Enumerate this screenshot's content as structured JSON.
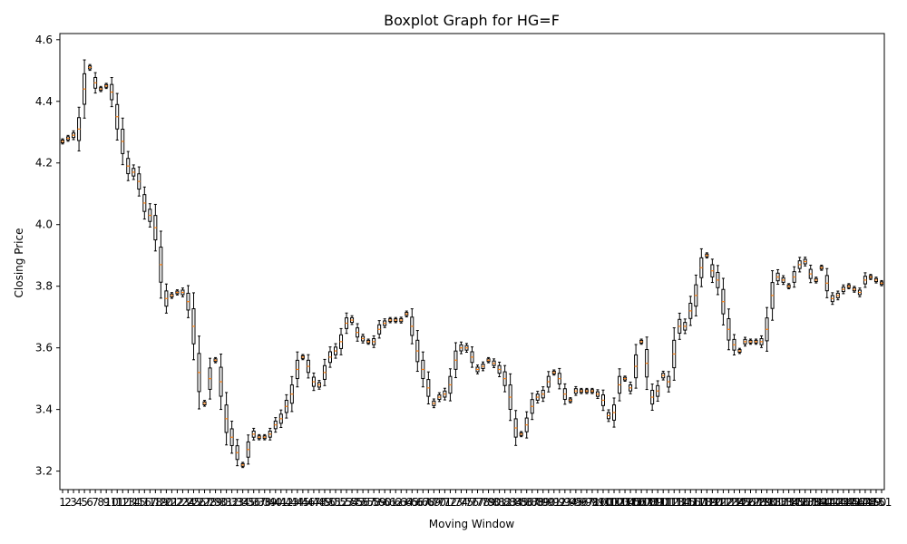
{
  "chart_data": {
    "type": "boxplot",
    "title": "Boxplot Graph for HG=F",
    "xlabel": "Moving Window",
    "ylabel": "Closing Price",
    "ylim": [
      3.14,
      4.62
    ],
    "yticks": [
      3.2,
      3.4,
      3.6,
      3.8,
      4.0,
      4.2,
      4.4,
      4.6
    ],
    "ytick_labels": [
      "3.2",
      "3.4",
      "3.6",
      "3.8",
      "4.0",
      "4.2",
      "4.4",
      "4.6"
    ],
    "x_count": 151,
    "colors": {
      "box": "#000000",
      "median": "#ff7f0e",
      "background": "#ffffff"
    },
    "anchors": [
      [
        1,
        4.27
      ],
      [
        2,
        4.28
      ],
      [
        3,
        4.29
      ],
      [
        4,
        4.31
      ],
      [
        5,
        4.44
      ],
      [
        6,
        4.51
      ],
      [
        7,
        4.46
      ],
      [
        8,
        4.44
      ],
      [
        9,
        4.45
      ],
      [
        10,
        4.43
      ],
      [
        11,
        4.35
      ],
      [
        12,
        4.27
      ],
      [
        13,
        4.19
      ],
      [
        14,
        4.17
      ],
      [
        15,
        4.14
      ],
      [
        16,
        4.07
      ],
      [
        17,
        4.03
      ],
      [
        18,
        3.99
      ],
      [
        19,
        3.87
      ],
      [
        20,
        3.76
      ],
      [
        21,
        3.77
      ],
      [
        22,
        3.78
      ],
      [
        23,
        3.78
      ],
      [
        24,
        3.75
      ],
      [
        25,
        3.67
      ],
      [
        26,
        3.52
      ],
      [
        27,
        3.42
      ],
      [
        28,
        3.5
      ],
      [
        29,
        3.56
      ],
      [
        30,
        3.49
      ],
      [
        31,
        3.37
      ],
      [
        32,
        3.31
      ],
      [
        33,
        3.26
      ],
      [
        34,
        3.22
      ],
      [
        35,
        3.27
      ],
      [
        36,
        3.32
      ],
      [
        37,
        3.31
      ],
      [
        38,
        3.31
      ],
      [
        39,
        3.32
      ],
      [
        40,
        3.35
      ],
      [
        41,
        3.37
      ],
      [
        42,
        3.41
      ],
      [
        43,
        3.45
      ],
      [
        44,
        3.53
      ],
      [
        45,
        3.57
      ],
      [
        46,
        3.54
      ],
      [
        47,
        3.49
      ],
      [
        48,
        3.48
      ],
      [
        49,
        3.52
      ],
      [
        50,
        3.57
      ],
      [
        51,
        3.59
      ],
      [
        52,
        3.62
      ],
      [
        53,
        3.68
      ],
      [
        54,
        3.69
      ],
      [
        55,
        3.65
      ],
      [
        56,
        3.63
      ],
      [
        57,
        3.62
      ],
      [
        58,
        3.62
      ],
      [
        59,
        3.66
      ],
      [
        60,
        3.68
      ],
      [
        61,
        3.69
      ],
      [
        62,
        3.69
      ],
      [
        63,
        3.69
      ],
      [
        64,
        3.71
      ],
      [
        65,
        3.67
      ],
      [
        66,
        3.59
      ],
      [
        67,
        3.53
      ],
      [
        68,
        3.47
      ],
      [
        69,
        3.42
      ],
      [
        70,
        3.44
      ],
      [
        71,
        3.45
      ],
      [
        72,
        3.48
      ],
      [
        73,
        3.56
      ],
      [
        74,
        3.6
      ],
      [
        75,
        3.6
      ],
      [
        76,
        3.57
      ],
      [
        77,
        3.53
      ],
      [
        78,
        3.54
      ],
      [
        79,
        3.56
      ],
      [
        80,
        3.55
      ],
      [
        81,
        3.53
      ],
      [
        82,
        3.5
      ],
      [
        83,
        3.44
      ],
      [
        84,
        3.34
      ],
      [
        85,
        3.32
      ],
      [
        86,
        3.35
      ],
      [
        87,
        3.41
      ],
      [
        88,
        3.44
      ],
      [
        89,
        3.45
      ],
      [
        90,
        3.49
      ],
      [
        91,
        3.52
      ],
      [
        92,
        3.5
      ],
      [
        93,
        3.45
      ],
      [
        94,
        3.43
      ],
      [
        95,
        3.46
      ],
      [
        96,
        3.46
      ],
      [
        97,
        3.46
      ],
      [
        98,
        3.46
      ],
      [
        99,
        3.45
      ],
      [
        100,
        3.43
      ],
      [
        101,
        3.38
      ],
      [
        102,
        3.39
      ],
      [
        103,
        3.48
      ],
      [
        104,
        3.5
      ],
      [
        105,
        3.47
      ],
      [
        106,
        3.54
      ],
      [
        107,
        3.62
      ],
      [
        108,
        3.55
      ],
      [
        109,
        3.44
      ],
      [
        110,
        3.46
      ],
      [
        111,
        3.51
      ],
      [
        112,
        3.49
      ],
      [
        113,
        3.58
      ],
      [
        114,
        3.67
      ],
      [
        115,
        3.67
      ],
      [
        116,
        3.72
      ],
      [
        117,
        3.77
      ],
      [
        118,
        3.86
      ],
      [
        119,
        3.9
      ],
      [
        120,
        3.85
      ],
      [
        121,
        3.82
      ],
      [
        122,
        3.75
      ],
      [
        123,
        3.66
      ],
      [
        124,
        3.61
      ],
      [
        125,
        3.59
      ],
      [
        126,
        3.62
      ],
      [
        127,
        3.62
      ],
      [
        128,
        3.62
      ],
      [
        129,
        3.62
      ],
      [
        130,
        3.66
      ],
      [
        131,
        3.77
      ],
      [
        132,
        3.83
      ],
      [
        133,
        3.82
      ],
      [
        134,
        3.8
      ],
      [
        135,
        3.83
      ],
      [
        136,
        3.87
      ],
      [
        137,
        3.88
      ],
      [
        138,
        3.84
      ],
      [
        139,
        3.82
      ],
      [
        140,
        3.86
      ],
      [
        141,
        3.81
      ],
      [
        142,
        3.76
      ],
      [
        143,
        3.77
      ],
      [
        144,
        3.79
      ],
      [
        145,
        3.8
      ],
      [
        146,
        3.79
      ],
      [
        147,
        3.78
      ],
      [
        148,
        3.82
      ],
      [
        149,
        3.83
      ],
      [
        150,
        3.82
      ],
      [
        151,
        3.81
      ]
    ],
    "y_sample": [
      4.27,
      4.28,
      4.29,
      4.31,
      4.44,
      4.51,
      4.46,
      4.44,
      4.45,
      4.43,
      4.35,
      4.27,
      4.19,
      4.17,
      4.14,
      4.07,
      4.03,
      3.99,
      3.87,
      3.76,
      3.77,
      3.78,
      3.78,
      3.75,
      3.67,
      3.52,
      3.42,
      3.5,
      3.56,
      3.49,
      3.37,
      3.31,
      3.26,
      3.22,
      3.27,
      3.32,
      3.31,
      3.31,
      3.32,
      3.35,
      3.37,
      3.41,
      3.45,
      3.53,
      3.57,
      3.54,
      3.49,
      3.48,
      3.52,
      3.57,
      3.59,
      3.62,
      3.68,
      3.69,
      3.65,
      3.63,
      3.62,
      3.62,
      3.66,
      3.68
    ]
  }
}
